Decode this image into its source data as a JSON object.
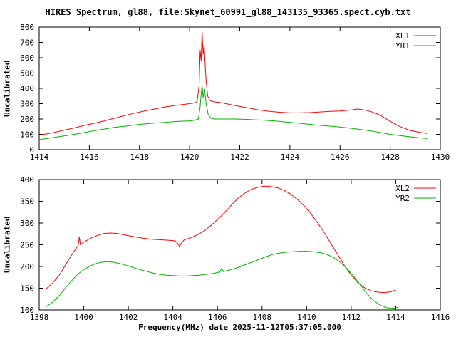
{
  "title": "HIRES Spectrum, gl88, file:Skynet_60991_gl88_143135_93365.spect.cyb.txt",
  "xlabel": "Frequency(MHz) date 2025-11-12T05:37:05.000",
  "colors": {
    "series_red": "#ff0000",
    "series_green": "#00b400",
    "axis": "#000000",
    "background": "#ffffff"
  },
  "chart_data": [
    {
      "type": "line",
      "ylabel": "Uncalibrated",
      "xlim": [
        1414,
        1430
      ],
      "ylim": [
        0,
        800
      ],
      "xticks": [
        1414,
        1416,
        1418,
        1420,
        1422,
        1424,
        1426,
        1428,
        1430
      ],
      "yticks": [
        0,
        100,
        200,
        300,
        400,
        500,
        600,
        700,
        800
      ],
      "grid": false,
      "legend_position": "top-right",
      "series": [
        {
          "name": "XL1",
          "color": "#ff0000",
          "x": [
            1414.0,
            1414.3,
            1414.6,
            1415.0,
            1415.4,
            1415.8,
            1416.2,
            1416.6,
            1417.0,
            1417.4,
            1417.8,
            1418.2,
            1418.6,
            1419.0,
            1419.4,
            1419.8,
            1420.0,
            1420.2,
            1420.3,
            1420.38,
            1420.42,
            1420.46,
            1420.5,
            1420.54,
            1420.58,
            1420.62,
            1420.66,
            1420.72,
            1420.8,
            1420.9,
            1421.0,
            1421.3,
            1421.6,
            1422.0,
            1422.4,
            1422.8,
            1423.2,
            1423.6,
            1424.0,
            1424.4,
            1424.8,
            1425.2,
            1425.6,
            1426.0,
            1426.4,
            1426.7,
            1427.0,
            1427.3,
            1427.6,
            1428.0,
            1428.4,
            1428.8,
            1429.2,
            1429.5
          ],
          "y": [
            95,
            103,
            112,
            128,
            142,
            158,
            172,
            188,
            205,
            222,
            238,
            252,
            265,
            278,
            288,
            296,
            300,
            305,
            315,
            420,
            650,
            580,
            770,
            620,
            690,
            560,
            450,
            350,
            322,
            315,
            312,
            305,
            295,
            282,
            270,
            258,
            250,
            244,
            240,
            240,
            242,
            246,
            250,
            252,
            258,
            265,
            258,
            245,
            225,
            185,
            150,
            125,
            112,
            105
          ]
        },
        {
          "name": "YR1",
          "color": "#00b400",
          "x": [
            1414.0,
            1414.4,
            1414.8,
            1415.2,
            1415.6,
            1416.0,
            1416.5,
            1417.0,
            1417.5,
            1418.0,
            1418.5,
            1419.0,
            1419.5,
            1420.0,
            1420.2,
            1420.35,
            1420.42,
            1420.46,
            1420.5,
            1420.54,
            1420.6,
            1420.66,
            1420.74,
            1420.85,
            1421.0,
            1421.4,
            1421.8,
            1422.2,
            1422.6,
            1423.0,
            1423.5,
            1424.0,
            1424.5,
            1425.0,
            1425.5,
            1426.0,
            1426.5,
            1427.0,
            1427.5,
            1428.0,
            1428.5,
            1429.0,
            1429.5
          ],
          "y": [
            65,
            75,
            85,
            95,
            105,
            118,
            132,
            145,
            155,
            165,
            172,
            178,
            184,
            188,
            192,
            200,
            280,
            360,
            420,
            340,
            395,
            300,
            230,
            205,
            200,
            200,
            200,
            198,
            195,
            192,
            186,
            178,
            170,
            162,
            155,
            148,
            138,
            128,
            115,
            100,
            90,
            80,
            72
          ]
        }
      ]
    },
    {
      "type": "line",
      "ylabel": "Uncalibrated",
      "xlim": [
        1398,
        1416
      ],
      "ylim": [
        100,
        400
      ],
      "xticks": [
        1398,
        1400,
        1402,
        1404,
        1406,
        1408,
        1410,
        1412,
        1414,
        1416
      ],
      "yticks": [
        100,
        150,
        200,
        250,
        300,
        350,
        400
      ],
      "grid": false,
      "legend_position": "top-right",
      "series": [
        {
          "name": "XL2",
          "color": "#ff0000",
          "x": [
            1398.3,
            1398.6,
            1398.9,
            1399.2,
            1399.5,
            1399.75,
            1399.8,
            1399.85,
            1400.0,
            1400.3,
            1400.6,
            1400.9,
            1401.2,
            1401.5,
            1401.8,
            1402.1,
            1402.4,
            1402.7,
            1403.0,
            1403.3,
            1403.6,
            1403.9,
            1404.1,
            1404.25,
            1404.3,
            1404.35,
            1404.5,
            1404.8,
            1405.1,
            1405.4,
            1405.7,
            1406.0,
            1406.3,
            1406.6,
            1406.9,
            1407.2,
            1407.5,
            1407.8,
            1408.1,
            1408.4,
            1408.7,
            1409.0,
            1409.3,
            1409.6,
            1409.9,
            1410.2,
            1410.5,
            1410.8,
            1411.1,
            1411.4,
            1411.7,
            1412.0,
            1412.3,
            1412.6,
            1412.9,
            1413.2,
            1413.5,
            1413.8,
            1414.0
          ],
          "y": [
            148,
            162,
            180,
            205,
            230,
            248,
            268,
            250,
            256,
            265,
            271,
            276,
            277,
            276,
            273,
            270,
            267,
            265,
            263,
            262,
            261,
            260,
            259,
            251,
            245,
            252,
            261,
            266,
            273,
            282,
            294,
            308,
            323,
            340,
            356,
            368,
            377,
            382,
            385,
            384,
            381,
            375,
            366,
            354,
            339,
            321,
            300,
            277,
            252,
            227,
            202,
            180,
            163,
            151,
            144,
            141,
            140,
            142,
            146
          ]
        },
        {
          "name": "YR2",
          "color": "#00b400",
          "x": [
            1398.3,
            1398.6,
            1398.9,
            1399.2,
            1399.5,
            1399.8,
            1400.1,
            1400.4,
            1400.7,
            1401.0,
            1401.3,
            1401.6,
            1401.9,
            1402.2,
            1402.5,
            1402.8,
            1403.1,
            1403.4,
            1403.7,
            1404.0,
            1404.3,
            1404.6,
            1404.9,
            1405.2,
            1405.5,
            1405.8,
            1406.1,
            1406.2,
            1406.25,
            1406.4,
            1406.7,
            1407.0,
            1407.3,
            1407.6,
            1407.9,
            1408.2,
            1408.5,
            1408.8,
            1409.1,
            1409.4,
            1409.7,
            1410.0,
            1410.3,
            1410.6,
            1410.9,
            1411.2,
            1411.5,
            1411.8,
            1412.1,
            1412.4,
            1412.7,
            1413.0,
            1413.3,
            1413.6,
            1413.9,
            1414.1
          ],
          "y": [
            107,
            118,
            133,
            152,
            170,
            185,
            196,
            204,
            209,
            211,
            210,
            207,
            203,
            198,
            193,
            189,
            185,
            182,
            180,
            179,
            178,
            178,
            179,
            180,
            182,
            184,
            187,
            196,
            188,
            190,
            194,
            199,
            205,
            211,
            217,
            223,
            228,
            231,
            233,
            234,
            235,
            235,
            234,
            232,
            228,
            221,
            210,
            196,
            178,
            158,
            138,
            122,
            111,
            105,
            104,
            106
          ]
        }
      ]
    }
  ]
}
